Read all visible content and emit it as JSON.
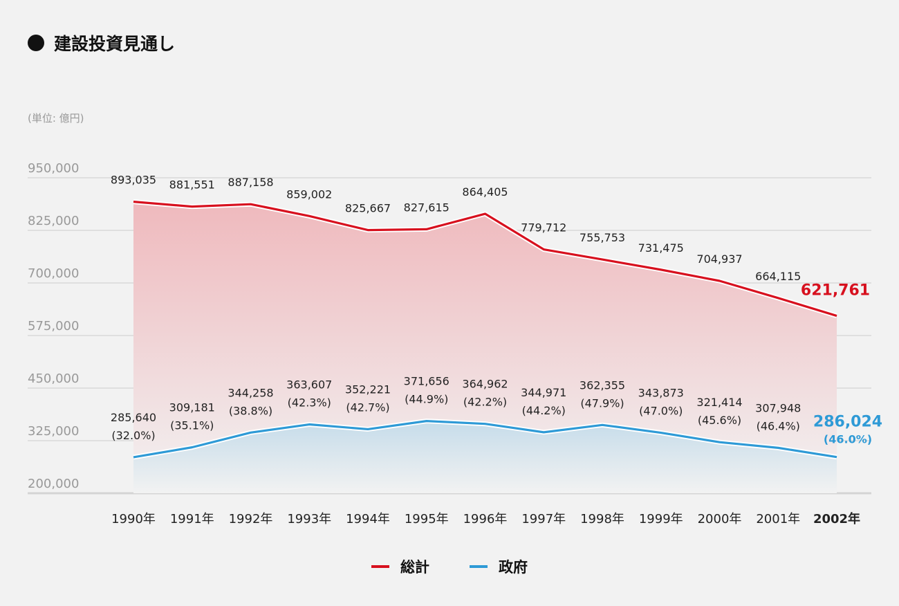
{
  "header": {
    "title": "建設投資見通し",
    "unit": "(単位: 億円)"
  },
  "colors": {
    "total": "#d7101e",
    "government": "#2e9ad6",
    "grid": "#d4d4d4"
  },
  "legend": [
    {
      "name": "総計",
      "color": "#d7101e"
    },
    {
      "name": "政府",
      "color": "#2e9ad6"
    }
  ],
  "chart_data": {
    "type": "area",
    "title": "建設投資見通し",
    "ylabel": "(単位: 億円)",
    "ylim": [
      200000,
      950000
    ],
    "yticks": [
      "950,000",
      "825,000",
      "700,000",
      "575,000",
      "450,000",
      "325,000",
      "200,000"
    ],
    "ytick_values": [
      950000,
      825000,
      700000,
      575000,
      450000,
      325000,
      200000
    ],
    "categories": [
      "1990年",
      "1991年",
      "1992年",
      "1993年",
      "1994年",
      "1995年",
      "1996年",
      "1997年",
      "1998年",
      "1999年",
      "2000年",
      "2001年",
      "2002年"
    ],
    "highlight_category": "2002年",
    "series": [
      {
        "name": "総計",
        "values": [
          893035,
          881551,
          887158,
          859002,
          825667,
          827615,
          864405,
          779712,
          755753,
          731475,
          704937,
          664115,
          621761
        ],
        "labels": [
          "893,035",
          "881,551",
          "887,158",
          "859,002",
          "825,667",
          "827,615",
          "864,405",
          "779,712",
          "755,753",
          "731,475",
          "704,937",
          "664,115",
          "621,761"
        ]
      },
      {
        "name": "政府",
        "values": [
          285640,
          309181,
          344258,
          363607,
          352221,
          371656,
          364962,
          344971,
          362355,
          343873,
          321414,
          307948,
          286024
        ],
        "labels": [
          "285,640",
          "309,181",
          "344,258",
          "363,607",
          "352,221",
          "371,656",
          "364,962",
          "344,971",
          "362,355",
          "343,873",
          "321,414",
          "307,948",
          "286,024"
        ],
        "shares": [
          "(32.0%)",
          "(35.1%)",
          "(38.8%)",
          "(42.3%)",
          "(42.7%)",
          "(44.9%)",
          "(42.2%)",
          "(44.2%)",
          "(47.9%)",
          "(47.0%)",
          "(45.6%)",
          "(46.4%)",
          "(46.0%)"
        ]
      }
    ]
  }
}
